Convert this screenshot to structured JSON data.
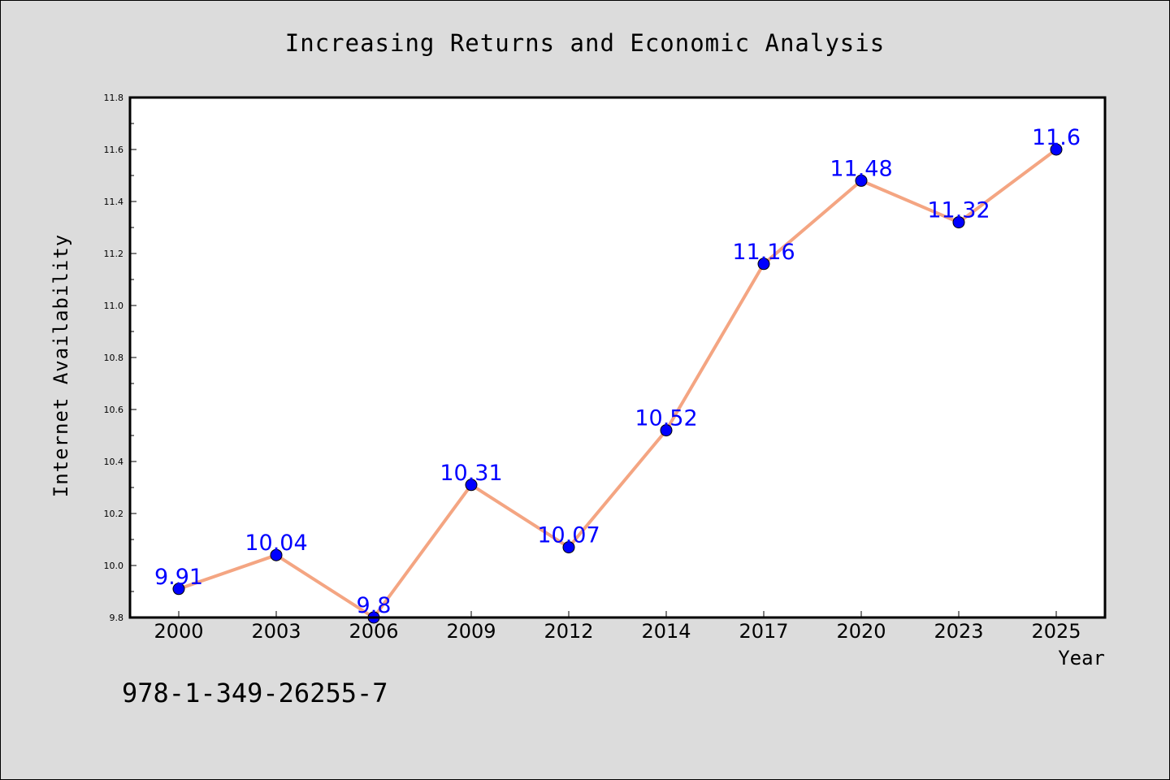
{
  "chart_data": {
    "type": "line",
    "title": "Increasing Returns and Economic Analysis",
    "xlabel": "Year",
    "ylabel": "Internet Availability",
    "categories": [
      "2000",
      "2003",
      "2006",
      "2009",
      "2012",
      "2014",
      "2017",
      "2020",
      "2023",
      "2025"
    ],
    "series": [
      {
        "values": [
          9.91,
          10.04,
          9.8,
          10.31,
          10.07,
          10.52,
          11.16,
          11.48,
          11.32,
          11.6
        ],
        "labels": [
          "9.91",
          "10.04",
          "9.8",
          "10.31",
          "10.07",
          "10.52",
          "11.16",
          "11.48",
          "11.32",
          "11.6"
        ],
        "line_color": "#f4a582",
        "marker_color": "#0000ff",
        "label_color": "#0000ff"
      }
    ],
    "ylim": [
      9.8,
      11.8
    ],
    "yticks": [
      "9.8",
      "10.0",
      "10.2",
      "10.4",
      "10.6",
      "10.8",
      "11.0",
      "11.2",
      "11.4",
      "11.6",
      "11.8"
    ],
    "grid": false,
    "legend": "none"
  },
  "footer": {
    "text": "978-1-349-26255-7"
  },
  "colors": {
    "background": "#dcdcdc",
    "plot_background": "#ffffff",
    "line": "#f4a582",
    "marker": "#0000ff"
  }
}
